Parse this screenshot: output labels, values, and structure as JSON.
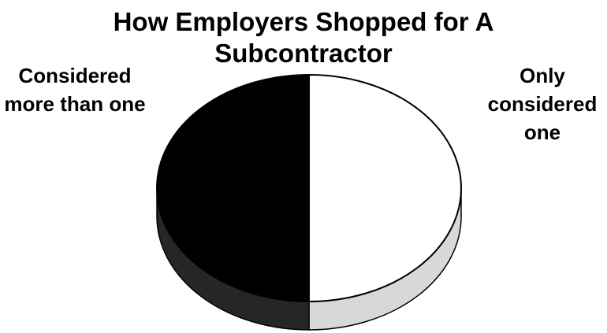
{
  "chart_data": {
    "type": "pie",
    "title": "How Employers Shopped for A Subcontractor",
    "categories": [
      "Only considered one",
      "Considered more than one"
    ],
    "values": [
      50,
      50
    ],
    "colors": [
      "#ffffff",
      "#000000"
    ]
  }
}
